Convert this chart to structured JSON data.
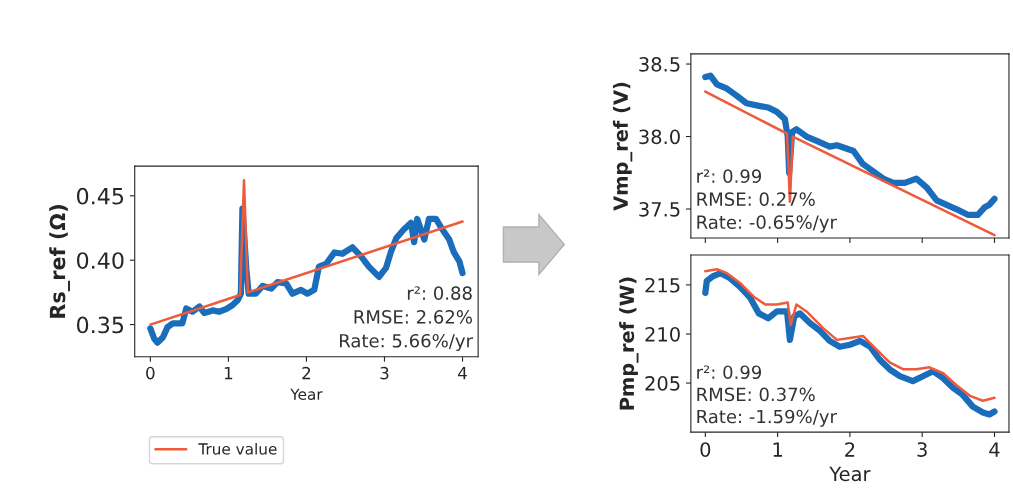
{
  "chart_data": [
    {
      "type": "line",
      "ylabel": "Rs_ref (Ω)",
      "xlabel": "Year",
      "xlim": [
        -0.2,
        4.2
      ],
      "ylim": [
        0.325,
        0.473
      ],
      "xticks": [
        0,
        1,
        2,
        3,
        4
      ],
      "yticks": [
        {
          "value": 0.35,
          "label": "0.35"
        },
        {
          "value": 0.4,
          "label": "0.40"
        },
        {
          "value": 0.45,
          "label": "0.45"
        }
      ],
      "legend": "bottom",
      "annotations": [
        "r²: 0.88",
        "RMSE: 2.62%",
        "Rate: 5.66%/yr"
      ],
      "series": [
        {
          "color": "#1a6dba",
          "x": [
            0,
            0.05,
            0.09,
            0.16,
            0.22,
            0.29,
            0.41,
            0.46,
            0.54,
            0.63,
            0.69,
            0.8,
            0.88,
            0.97,
            1.05,
            1.12,
            1.16,
            1.18,
            1.23,
            1.26,
            1.35,
            1.44,
            1.55,
            1.63,
            1.74,
            1.82,
            1.93,
            2.01,
            2.1,
            2.16,
            2.25,
            2.36,
            2.46,
            2.59,
            2.7,
            2.8,
            2.93,
            3.02,
            3.08,
            3.15,
            3.25,
            3.34,
            3.38,
            3.42,
            3.51,
            3.57,
            3.66,
            3.74,
            3.83,
            3.89,
            3.96,
            4.0
          ],
          "values": [
            0.347,
            0.339,
            0.336,
            0.34,
            0.348,
            0.351,
            0.351,
            0.3625,
            0.36,
            0.364,
            0.359,
            0.361,
            0.36,
            0.362,
            0.365,
            0.369,
            0.374,
            0.44,
            0.393,
            0.374,
            0.374,
            0.38,
            0.378,
            0.383,
            0.382,
            0.374,
            0.377,
            0.374,
            0.377,
            0.395,
            0.397,
            0.406,
            0.405,
            0.41,
            0.403,
            0.395,
            0.387,
            0.394,
            0.406,
            0.417,
            0.424,
            0.429,
            0.414,
            0.432,
            0.416,
            0.432,
            0.432,
            0.424,
            0.416,
            0.406,
            0.399,
            0.39
          ]
        },
        {
          "name": "True value",
          "color": "#ee5a3c",
          "x": [
            0,
            1.15,
            1.2,
            1.25,
            4.0
          ],
          "values": [
            0.35,
            0.373,
            0.462,
            0.375,
            0.43
          ]
        }
      ]
    },
    {
      "type": "line",
      "ylabel": "Vmp_ref (V)",
      "xlim": [
        -0.2,
        4.2
      ],
      "ylim": [
        37.3,
        38.57
      ],
      "xticks": [
        0,
        1,
        2,
        3,
        4
      ],
      "yticks": [
        {
          "value": 37.5,
          "label": "37.5"
        },
        {
          "value": 38.0,
          "label": "38.0"
        },
        {
          "value": 38.5,
          "label": "38.5"
        }
      ],
      "tick_labels": "y",
      "annotations": [
        "r²: 0.99",
        "RMSE: 0.27%",
        "Rate: -0.65%/yr"
      ],
      "series": [
        {
          "color": "#1a6dba",
          "x": [
            0,
            0.07,
            0.16,
            0.3,
            0.44,
            0.57,
            0.76,
            0.87,
            0.99,
            1.1,
            1.14,
            1.16,
            1.2,
            1.26,
            1.4,
            1.54,
            1.72,
            1.82,
            2.05,
            2.18,
            2.32,
            2.46,
            2.6,
            2.76,
            2.92,
            3.06,
            3.2,
            3.33,
            3.47,
            3.63,
            3.77,
            3.86,
            3.93,
            4.0
          ],
          "values": [
            38.41,
            38.42,
            38.36,
            38.33,
            38.28,
            38.23,
            38.21,
            38.2,
            38.17,
            38.12,
            38.0,
            37.75,
            38.03,
            38.05,
            38.0,
            37.97,
            37.93,
            37.94,
            37.9,
            37.81,
            37.76,
            37.71,
            37.68,
            37.68,
            37.71,
            37.65,
            37.56,
            37.53,
            37.5,
            37.46,
            37.46,
            37.51,
            37.53,
            37.57
          ]
        },
        {
          "color": "#ee5a3c",
          "x": [
            0,
            1.13,
            1.17,
            1.21,
            4.0
          ],
          "values": [
            38.31,
            38.02,
            37.55,
            38.0,
            37.32
          ]
        }
      ]
    },
    {
      "type": "line",
      "ylabel": "Pmp_ref (W)",
      "xlabel": "Year",
      "xlim": [
        -0.2,
        4.2
      ],
      "ylim": [
        200.0,
        218.05
      ],
      "xticks": [
        0,
        1,
        2,
        3,
        4
      ],
      "yticks": [
        205,
        210,
        215
      ],
      "annotations": [
        "r²: 0.99",
        "RMSE: 0.37%",
        "Rate: -1.59%/yr"
      ],
      "series": [
        {
          "color": "#1a6dba",
          "x": [
            0,
            0.02,
            0.11,
            0.21,
            0.34,
            0.48,
            0.62,
            0.74,
            0.87,
            0.99,
            1.13,
            1.17,
            1.23,
            1.31,
            1.45,
            1.59,
            1.72,
            1.86,
            2.0,
            2.14,
            2.28,
            2.41,
            2.55,
            2.69,
            2.87,
            3.01,
            3.15,
            3.29,
            3.43,
            3.56,
            3.7,
            3.84,
            3.93,
            4.0
          ],
          "values": [
            214.2,
            215.4,
            215.9,
            216.2,
            215.7,
            214.8,
            213.7,
            212.1,
            211.6,
            212.3,
            212.3,
            209.4,
            211.8,
            212.1,
            211.1,
            210.3,
            209.3,
            208.7,
            208.9,
            209.3,
            208.7,
            207.4,
            206.4,
            205.7,
            205.2,
            205.7,
            206.2,
            205.5,
            204.5,
            203.8,
            202.6,
            202.0,
            201.8,
            202.1
          ]
        },
        {
          "color": "#ee5a3c",
          "x": [
            0,
            0.16,
            0.3,
            0.48,
            0.67,
            0.83,
            0.99,
            1.14,
            1.18,
            1.26,
            1.4,
            1.63,
            1.82,
            2.0,
            2.18,
            2.37,
            2.55,
            2.74,
            2.92,
            3.1,
            3.29,
            3.47,
            3.66,
            3.84,
            4.0
          ],
          "values": [
            216.4,
            216.6,
            216.2,
            215.2,
            213.8,
            213.0,
            213.0,
            213.2,
            210.9,
            213.0,
            212.3,
            210.6,
            209.4,
            209.6,
            209.8,
            208.4,
            207.1,
            206.4,
            206.4,
            206.6,
            206.0,
            204.8,
            203.7,
            203.2,
            203.5
          ]
        }
      ]
    }
  ]
}
